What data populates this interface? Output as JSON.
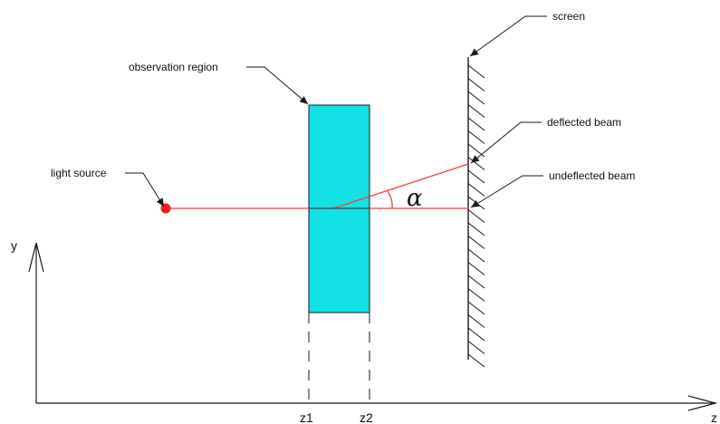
{
  "labels": {
    "screen": "screen",
    "observation_region": "observation region",
    "deflected_beam": "deflected beam",
    "light_source": "light source",
    "undeflected_beam": "undeflected beam",
    "alpha": "α",
    "y_axis": "y",
    "z_axis": "z",
    "z1": "z1",
    "z2": "z2"
  },
  "colors": {
    "beam": "#ff3b3b",
    "source": "#ff1a1a",
    "region_fill": "#14e1e6",
    "region_stroke": "#1a1a1a",
    "lines": "#1a1a1a"
  },
  "icons": {
    "source": "red-dot-icon",
    "leader_arrow": "arrow-icon",
    "axis_arrow": "open-arrow-icon"
  }
}
